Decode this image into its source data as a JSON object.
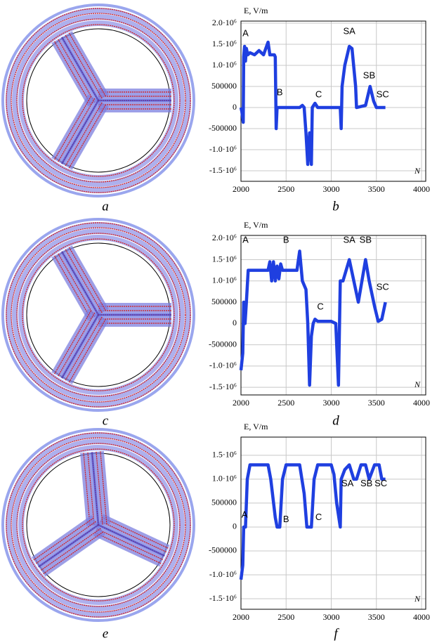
{
  "panel_labels": [
    "a",
    "c",
    "e"
  ],
  "chart_data": [
    {
      "type": "line",
      "label": "b",
      "y_label": "E, V/m",
      "x_label": "N",
      "color": "#1f3fe0",
      "grid": true,
      "annotations": [
        "A",
        "B",
        "C",
        "SA",
        "SB",
        "SC"
      ],
      "xlim": [
        2000,
        4000
      ],
      "xticks": [
        2000,
        2500,
        3000,
        3500,
        4000
      ],
      "ylim": [
        -1750000,
        2050000
      ],
      "yticks": [
        {
          "value": 2000000,
          "label": "2.0·10⁶"
        },
        {
          "value": 1500000,
          "label": "1.5·10⁶"
        },
        {
          "value": 1000000,
          "label": "1.0·10⁶"
        },
        500000,
        0,
        -500000,
        {
          "value": -1000000,
          "label": "-1.0·10⁶"
        },
        {
          "value": -1500000,
          "label": "-1.5·10⁶"
        }
      ],
      "x": [
        2000,
        2010,
        2025,
        2030,
        2040,
        2050,
        2060,
        2075,
        2100,
        2150,
        2200,
        2250,
        2300,
        2320,
        2370,
        2380,
        2390,
        2400,
        2650,
        2680,
        2700,
        2720,
        2740,
        2760,
        2780,
        2790,
        2820,
        2850,
        3100,
        3110,
        3120,
        3150,
        3200,
        3230,
        3270,
        3280,
        3380,
        3430,
        3470,
        3500,
        3600
      ],
      "values": [
        0,
        -100000,
        -350000,
        1200000,
        1450000,
        1100000,
        1400000,
        1250000,
        1300000,
        1250000,
        1350000,
        1250000,
        1550000,
        1250000,
        1250000,
        1200000,
        -500000,
        0,
        0,
        50000,
        0,
        -600000,
        -1350000,
        -600000,
        -1350000,
        0,
        100000,
        0,
        0,
        -500000,
        500000,
        1000000,
        1450000,
        1400000,
        500000,
        0,
        50000,
        500000,
        150000,
        0,
        0
      ]
    },
    {
      "type": "line",
      "label": "d",
      "y_label": "E, V/m",
      "x_label": "N",
      "color": "#1f3fe0",
      "grid": true,
      "annotations": [
        "A",
        "B",
        "C",
        "SA",
        "SB",
        "SC"
      ],
      "xlim": [
        2000,
        4000
      ],
      "xticks": [
        2000,
        2500,
        3000,
        3500,
        4000
      ],
      "ylim": [
        -1680000,
        2070000
      ],
      "yticks": [
        {
          "value": 2000000,
          "label": "2.0·10⁶"
        },
        {
          "value": 1500000,
          "label": "1.5·10⁶"
        },
        {
          "value": 1000000,
          "label": "1.0·10⁶"
        },
        500000,
        0,
        -500000,
        {
          "value": -1000000,
          "label": "-1.0·10⁶"
        },
        {
          "value": -1500000,
          "label": "-1.5·10⁶"
        }
      ],
      "x": [
        2000,
        2020,
        2030,
        2045,
        2060,
        2080,
        2300,
        2320,
        2340,
        2360,
        2380,
        2400,
        2420,
        2440,
        2460,
        2620,
        2650,
        2680,
        2720,
        2740,
        2760,
        2780,
        2800,
        2820,
        2850,
        3000,
        3050,
        3080,
        3100,
        3130,
        3200,
        3250,
        3300,
        3380,
        3420,
        3480,
        3520,
        3560,
        3600
      ],
      "values": [
        -1100000,
        -700000,
        500000,
        0,
        500000,
        1250000,
        1250000,
        1450000,
        1000000,
        1450000,
        1000000,
        1350000,
        1050000,
        1400000,
        1250000,
        1250000,
        1700000,
        1000000,
        800000,
        0,
        -1450000,
        -300000,
        0,
        100000,
        50000,
        50000,
        0,
        -1450000,
        1000000,
        1000000,
        1500000,
        1000000,
        500000,
        1500000,
        1000000,
        400000,
        50000,
        100000,
        500000
      ]
    },
    {
      "type": "line",
      "label": "f",
      "y_label": "E, V/m",
      "x_label": "N",
      "color": "#1f3fe0",
      "grid": true,
      "annotations": [
        "A",
        "B",
        "C",
        "SA",
        "SB",
        "SC"
      ],
      "xlim": [
        2000,
        4000
      ],
      "xticks": [
        2000,
        2500,
        3000,
        3500,
        4000
      ],
      "ylim": [
        -1720000,
        1880000
      ],
      "yticks": [
        {
          "value": 1500000,
          "label": "1.5·10⁶"
        },
        {
          "value": 1000000,
          "label": "1.0·10⁶"
        },
        500000,
        0,
        -500000,
        {
          "value": -1000000,
          "label": "-1.0·10⁶"
        },
        {
          "value": -1500000,
          "label": "-1.5·10⁶"
        }
      ],
      "x": [
        2000,
        2020,
        2030,
        2050,
        2070,
        2100,
        2300,
        2330,
        2380,
        2400,
        2430,
        2460,
        2500,
        2650,
        2700,
        2730,
        2780,
        2810,
        2850,
        3000,
        3030,
        3060,
        3100,
        3110,
        3150,
        3200,
        3250,
        3280,
        3330,
        3380,
        3420,
        3480,
        3530,
        3560,
        3600
      ],
      "values": [
        -1100000,
        -800000,
        0,
        0,
        1000000,
        1300000,
        1300000,
        1000000,
        200000,
        0,
        0,
        1000000,
        1300000,
        1300000,
        700000,
        0,
        0,
        1000000,
        1300000,
        1300000,
        1100000,
        500000,
        0,
        1000000,
        1200000,
        1300000,
        1000000,
        1000000,
        1300000,
        1300000,
        1000000,
        1300000,
        1300000,
        1000000,
        1000000
      ]
    }
  ]
}
